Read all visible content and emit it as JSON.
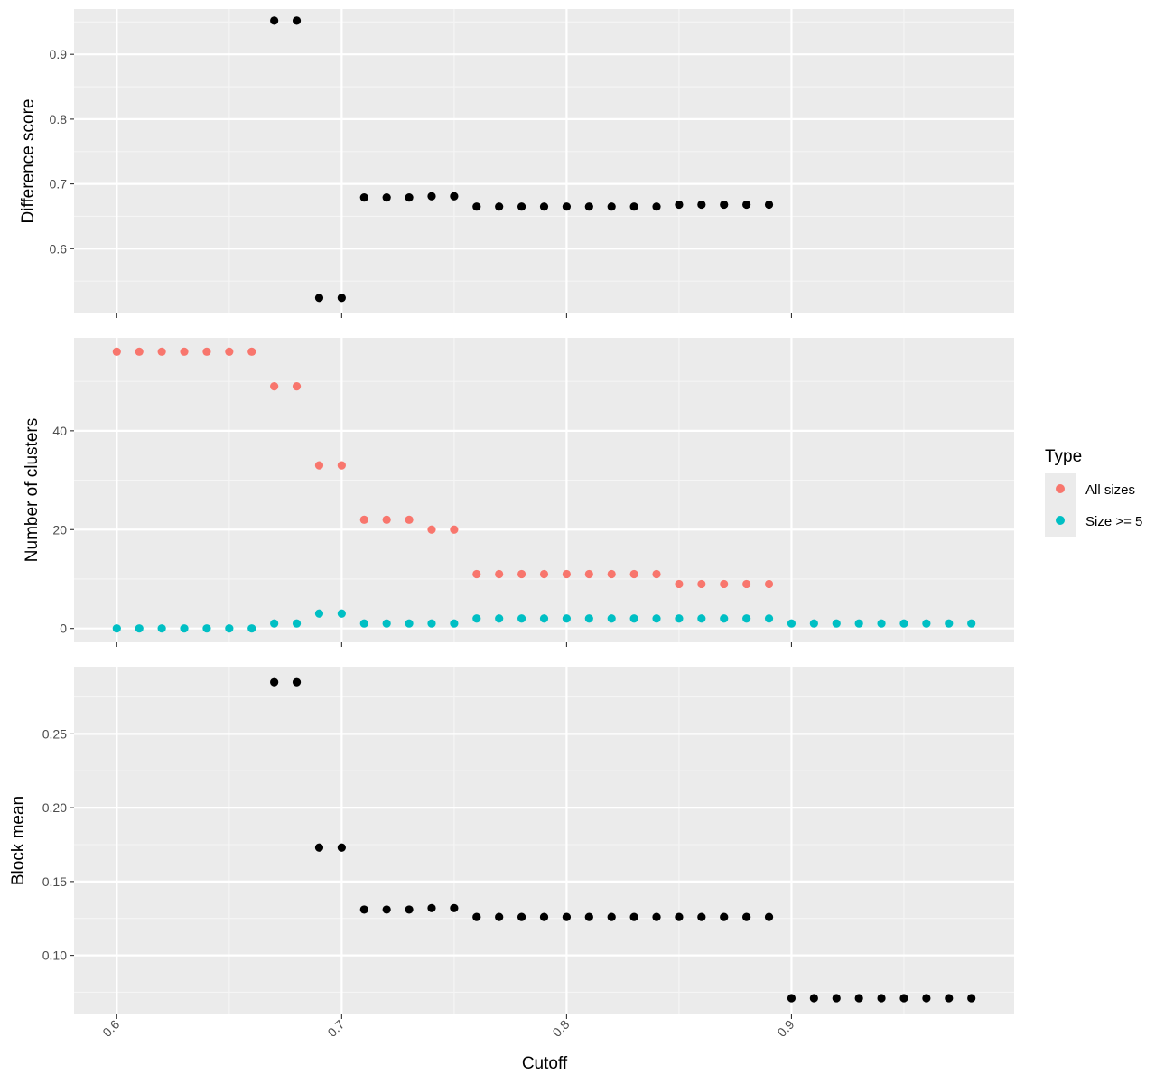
{
  "x_axis_title": "Cutoff",
  "colors": {
    "panel_bg": "#ebebeb",
    "grid_major": "#ffffff",
    "grid_minor": "#f5f5f5",
    "tick_text": "#4d4d4d",
    "tick_mark": "#333333",
    "black_points": "#000000",
    "all_sizes": "#F8766D",
    "size_ge_5": "#00BFC4"
  },
  "legend": {
    "title": "Type",
    "entries": [
      {
        "label": "All sizes",
        "color": "#F8766D"
      },
      {
        "label": "Size >= 5",
        "color": "#00BFC4"
      }
    ]
  },
  "chart_data": [
    {
      "type": "scatter",
      "ylabel": "Difference score",
      "xlabel": "Cutoff",
      "xlim": [
        0.581,
        0.999
      ],
      "ylim": [
        0.5,
        0.97
      ],
      "x_ticks": [
        0.6,
        0.7,
        0.8,
        0.9
      ],
      "x_tick_labels": [
        "0.6",
        "0.7",
        "0.8",
        "0.9"
      ],
      "y_ticks": [
        0.6,
        0.7,
        0.8,
        0.9
      ],
      "y_tick_labels": [
        "0.6",
        "0.7",
        "0.8",
        "0.9"
      ],
      "grid": true,
      "series": [
        {
          "color": "#000000",
          "x": [
            0.67,
            0.68,
            0.69,
            0.7,
            0.71,
            0.72,
            0.73,
            0.74,
            0.75,
            0.76,
            0.77,
            0.78,
            0.79,
            0.8,
            0.81,
            0.82,
            0.83,
            0.84,
            0.85,
            0.86,
            0.87,
            0.88,
            0.89
          ],
          "y": [
            0.952,
            0.952,
            0.524,
            0.524,
            0.679,
            0.679,
            0.679,
            0.681,
            0.681,
            0.665,
            0.665,
            0.665,
            0.665,
            0.665,
            0.665,
            0.665,
            0.665,
            0.665,
            0.668,
            0.668,
            0.668,
            0.668,
            0.668
          ]
        }
      ]
    },
    {
      "type": "scatter",
      "ylabel": "Number of clusters",
      "xlabel": "Cutoff",
      "xlim": [
        0.581,
        0.999
      ],
      "ylim": [
        -2.8,
        58.8
      ],
      "x_ticks": [
        0.6,
        0.7,
        0.8,
        0.9
      ],
      "x_tick_labels": [
        "0.6",
        "0.7",
        "0.8",
        "0.9"
      ],
      "y_ticks": [
        0,
        20,
        40
      ],
      "y_tick_labels": [
        "0",
        "20",
        "40"
      ],
      "grid": true,
      "legend_position": "right",
      "series": [
        {
          "name": "All sizes",
          "color": "#F8766D",
          "x": [
            0.6,
            0.61,
            0.62,
            0.63,
            0.64,
            0.65,
            0.66,
            0.67,
            0.68,
            0.69,
            0.7,
            0.71,
            0.72,
            0.73,
            0.74,
            0.75,
            0.76,
            0.77,
            0.78,
            0.79,
            0.8,
            0.81,
            0.82,
            0.83,
            0.84,
            0.85,
            0.86,
            0.87,
            0.88,
            0.89
          ],
          "y": [
            56,
            56,
            56,
            56,
            56,
            56,
            56,
            49,
            49,
            33,
            33,
            22,
            22,
            22,
            20,
            20,
            11,
            11,
            11,
            11,
            11,
            11,
            11,
            11,
            11,
            9,
            9,
            9,
            9,
            9
          ]
        },
        {
          "name": "Size >= 5",
          "color": "#00BFC4",
          "x": [
            0.6,
            0.61,
            0.62,
            0.63,
            0.64,
            0.65,
            0.66,
            0.67,
            0.68,
            0.69,
            0.7,
            0.71,
            0.72,
            0.73,
            0.74,
            0.75,
            0.76,
            0.77,
            0.78,
            0.79,
            0.8,
            0.81,
            0.82,
            0.83,
            0.84,
            0.85,
            0.86,
            0.87,
            0.88,
            0.89,
            0.9,
            0.91,
            0.92,
            0.93,
            0.94,
            0.95,
            0.96,
            0.97,
            0.98
          ],
          "y": [
            0,
            0,
            0,
            0,
            0,
            0,
            0,
            1,
            1,
            3,
            3,
            1,
            1,
            1,
            1,
            1,
            2,
            2,
            2,
            2,
            2,
            2,
            2,
            2,
            2,
            2,
            2,
            2,
            2,
            2,
            1,
            1,
            1,
            1,
            1,
            1,
            1,
            1,
            1
          ]
        }
      ]
    },
    {
      "type": "scatter",
      "ylabel": "Block mean",
      "xlabel": "Cutoff",
      "xlim": [
        0.581,
        0.999
      ],
      "ylim": [
        0.06,
        0.2955
      ],
      "x_ticks": [
        0.6,
        0.7,
        0.8,
        0.9
      ],
      "x_tick_labels": [
        "0.6",
        "0.7",
        "0.8",
        "0.9"
      ],
      "y_ticks": [
        0.1,
        0.15,
        0.2,
        0.25
      ],
      "y_tick_labels": [
        "0.10",
        "0.15",
        "0.20",
        "0.25"
      ],
      "grid": true,
      "series": [
        {
          "color": "#000000",
          "x": [
            0.67,
            0.68,
            0.69,
            0.7,
            0.71,
            0.72,
            0.73,
            0.74,
            0.75,
            0.76,
            0.77,
            0.78,
            0.79,
            0.8,
            0.81,
            0.82,
            0.83,
            0.84,
            0.85,
            0.86,
            0.87,
            0.88,
            0.89,
            0.9,
            0.91,
            0.92,
            0.93,
            0.94,
            0.95,
            0.96,
            0.97,
            0.98
          ],
          "y": [
            0.285,
            0.285,
            0.173,
            0.173,
            0.131,
            0.131,
            0.131,
            0.132,
            0.132,
            0.126,
            0.126,
            0.126,
            0.126,
            0.126,
            0.126,
            0.126,
            0.126,
            0.126,
            0.126,
            0.126,
            0.126,
            0.126,
            0.126,
            0.071,
            0.071,
            0.071,
            0.071,
            0.071,
            0.071,
            0.071,
            0.071,
            0.071
          ]
        }
      ]
    }
  ]
}
